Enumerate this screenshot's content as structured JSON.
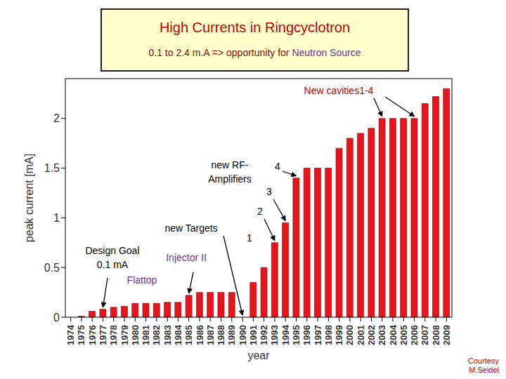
{
  "chart_data": {
    "type": "bar",
    "title": "High Currents in Ringcyclotron",
    "subtitle": [
      "0.1 to 2.4 m.A  => opportunity for",
      "Neutron Source"
    ],
    "x_label": "year",
    "y_label": "peak current [mA]",
    "categories": [
      "1974",
      "1975",
      "1976",
      "1977",
      "1978",
      "1979",
      "1980",
      "1981",
      "1982",
      "1983",
      "1984",
      "1985",
      "1986",
      "1987",
      "1988",
      "1989",
      "1990",
      "1991",
      "1992",
      "1993",
      "1994",
      "1995",
      "1996",
      "1997",
      "1998",
      "1999",
      "2000",
      "2001",
      "2002",
      "2003",
      "2004",
      "2005",
      "2006",
      "2007",
      "2008",
      "2009"
    ],
    "values": [
      0,
      0.01,
      0.06,
      0.08,
      0.1,
      0.11,
      0.14,
      0.14,
      0.14,
      0.15,
      0.15,
      0.22,
      0.25,
      0.25,
      0.25,
      0.25,
      0,
      0.35,
      0.5,
      0.75,
      0.95,
      1.4,
      1.5,
      1.5,
      1.5,
      1.7,
      1.8,
      1.85,
      1.9,
      2.0,
      2.0,
      2.0,
      2.0,
      2.15,
      2.22,
      2.3
    ],
    "color": "#e8141c",
    "ylim": [
      0,
      2.4
    ],
    "yticks": [
      0,
      0.5,
      1,
      1.5,
      2
    ],
    "grid": false,
    "annotations": [
      {
        "lines": [
          "Design Goal",
          "0.1 mA"
        ],
        "color": "#000000",
        "targets": [
          "1977"
        ]
      },
      {
        "lines": [
          "Flattop"
        ],
        "color": "#7030a0"
      },
      {
        "lines": [
          "Injector II"
        ],
        "color": "#7030a0",
        "targets": [
          "1985"
        ]
      },
      {
        "lines": [
          "new Targets"
        ],
        "color": "#000000",
        "targets": [
          "1990"
        ]
      },
      {
        "lines": [
          "new RF-",
          "Amplifiers"
        ],
        "color": "#000000"
      },
      {
        "lines": [
          "1"
        ],
        "color": "#000000"
      },
      {
        "lines": [
          "2"
        ],
        "color": "#000000",
        "targets": [
          "1993"
        ]
      },
      {
        "lines": [
          "3"
        ],
        "color": "#000000",
        "targets": [
          "1994"
        ]
      },
      {
        "lines": [
          "4"
        ],
        "color": "#000000",
        "targets": [
          "1995"
        ]
      },
      {
        "lines": [
          "New cavities1-4"
        ],
        "color": "#c00000",
        "targets": [
          "2003",
          "2006"
        ]
      }
    ],
    "credit": [
      "Courtesy",
      "M.Seidel"
    ]
  }
}
